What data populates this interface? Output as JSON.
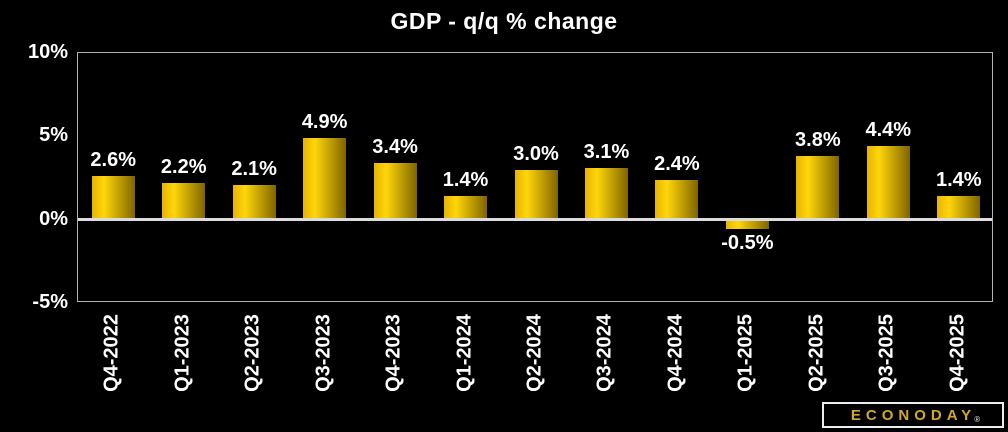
{
  "title": "GDP - q/q % change",
  "chart_data": {
    "type": "bar",
    "title": "GDP - q/q % change",
    "categories": [
      "Q4-2022",
      "Q1-2023",
      "Q2-2023",
      "Q3-2023",
      "Q4-2023",
      "Q1-2024",
      "Q2-2024",
      "Q3-2024",
      "Q4-2024",
      "Q1-2025",
      "Q2-2025",
      "Q3-2025",
      "Q4-2025"
    ],
    "values": [
      2.6,
      2.2,
      2.1,
      4.9,
      3.4,
      1.4,
      3.0,
      3.1,
      2.4,
      -0.5,
      3.8,
      4.4,
      1.4
    ],
    "value_labels": [
      "2.6%",
      "2.2%",
      "2.1%",
      "4.9%",
      "3.4%",
      "1.4%",
      "3.0%",
      "3.1%",
      "2.4%",
      "-0.5%",
      "3.8%",
      "4.4%",
      "1.4%"
    ],
    "xlabel": "",
    "ylabel": "",
    "ylim": [
      -5,
      10
    ],
    "yticks": [
      {
        "value": 10,
        "label": "10%"
      },
      {
        "value": 5,
        "label": "5%"
      },
      {
        "value": 0,
        "label": "0%"
      },
      {
        "value": -5,
        "label": "-5%"
      }
    ],
    "grid": false,
    "legend": false,
    "bar_orientation": "vertical"
  },
  "colors": {
    "background": "#000000",
    "text": "#ffffff",
    "bar_gradient_left": "#e7b303",
    "bar_gradient_bright": "#ffd60a",
    "bar_gradient_right": "#7f6400",
    "plot_border": "#b3b3b3",
    "zero_line": "#dcdcdc",
    "logo_gold": "#d2a62f",
    "logo_border": "#ededed"
  },
  "branding": {
    "logo_text": "ECONODAY",
    "registered_mark": "®"
  }
}
